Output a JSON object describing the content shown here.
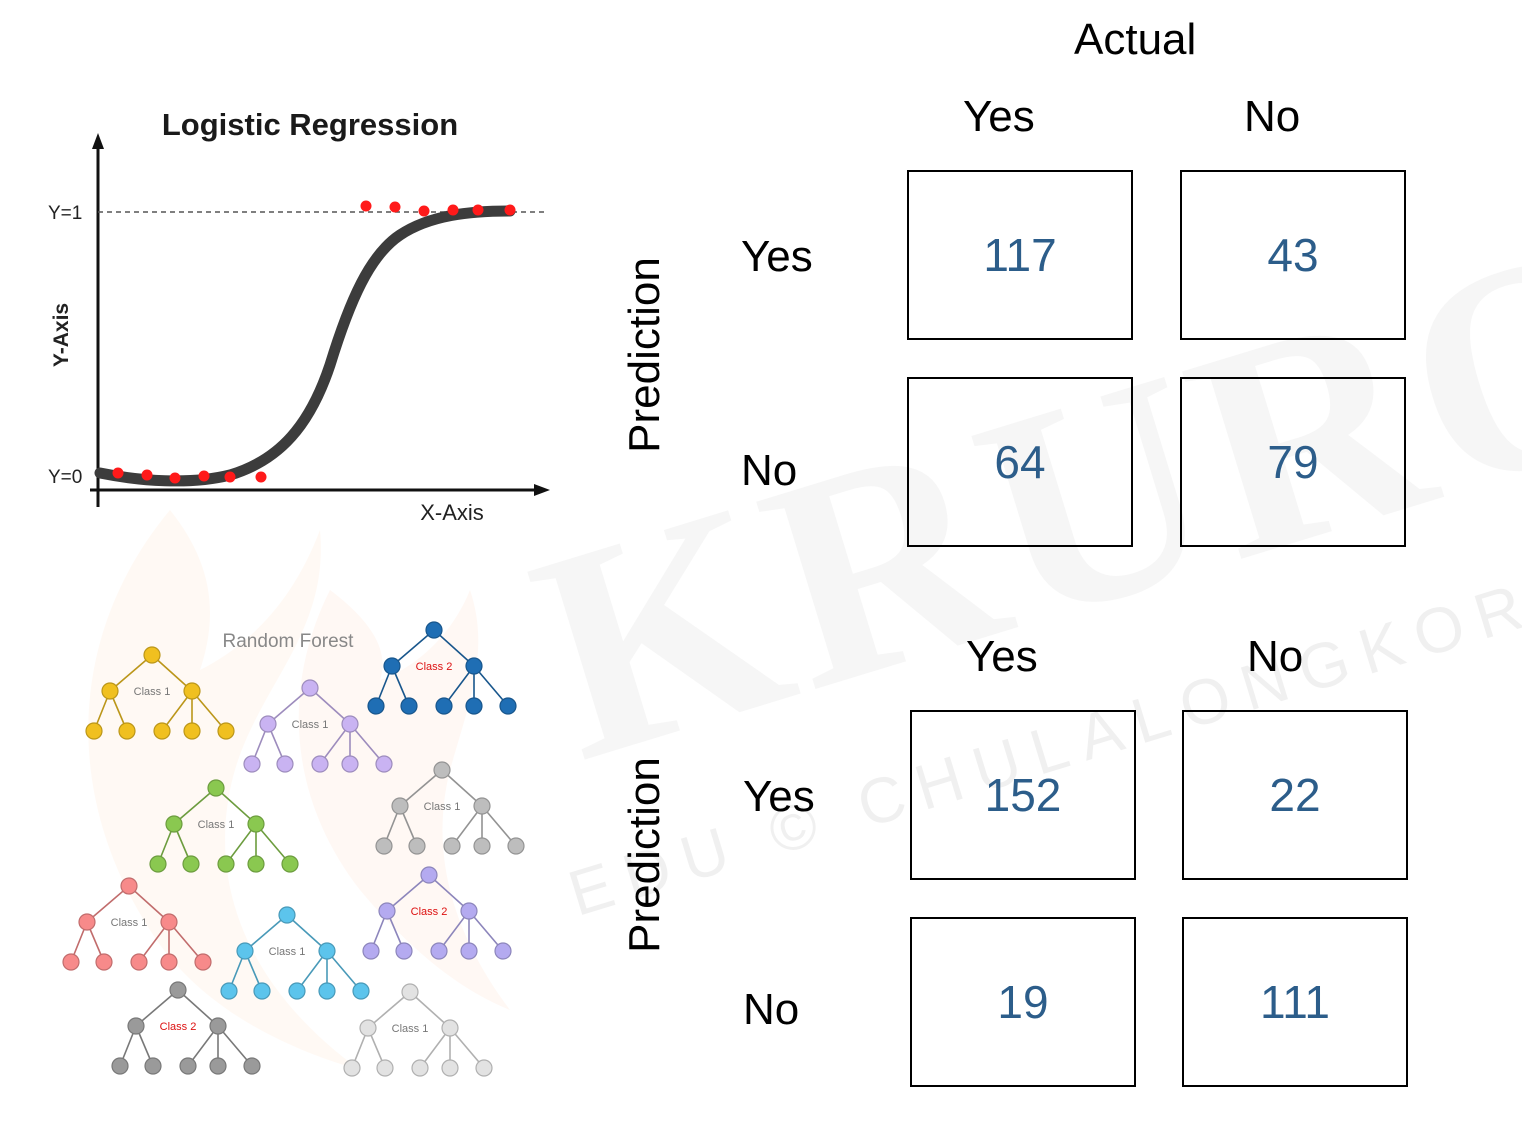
{
  "watermark": {
    "brand": "KRUROO",
    "subtitle": "EDU © CHULALONGKORN"
  },
  "logistic_regression": {
    "title": "Logistic Regression",
    "y_axis_label": "Y-Axis",
    "x_axis_label": "X-Axis",
    "y1_label": "Y=1",
    "y0_label": "Y=0",
    "colors": {
      "curve": "#3c3c3c",
      "points": "#ff1a1a"
    }
  },
  "random_forest": {
    "title": "Random Forest",
    "trees": [
      {
        "label": "Class 1",
        "color": "#f0c020"
      },
      {
        "label": "Class 2",
        "color": "#1f6eb4"
      },
      {
        "label": "Class 1",
        "color": "#c9b3f2"
      },
      {
        "label": "Class 1",
        "color": "#8ac850"
      },
      {
        "label": "Class 1",
        "color": "#bdbdbd"
      },
      {
        "label": "Class 2",
        "color": "#b4aaf0"
      },
      {
        "label": "Class 1",
        "color": "#f78a8a"
      },
      {
        "label": "Class 1",
        "color": "#5cc4ec"
      },
      {
        "label": "Class 2",
        "color": "#9a9a9a"
      },
      {
        "label": "Class 1",
        "color": "#e2e2e2"
      }
    ]
  },
  "matrix": {
    "actual_label": "Actual",
    "prediction_label": "Prediction",
    "yes": "Yes",
    "no": "No",
    "value_color": "#2c5d8a",
    "top": {
      "tp": "117",
      "fp": "43",
      "fn": "64",
      "tn": "79"
    },
    "bottom": {
      "tp": "152",
      "fp": "22",
      "fn": "19",
      "tn": "111"
    }
  }
}
